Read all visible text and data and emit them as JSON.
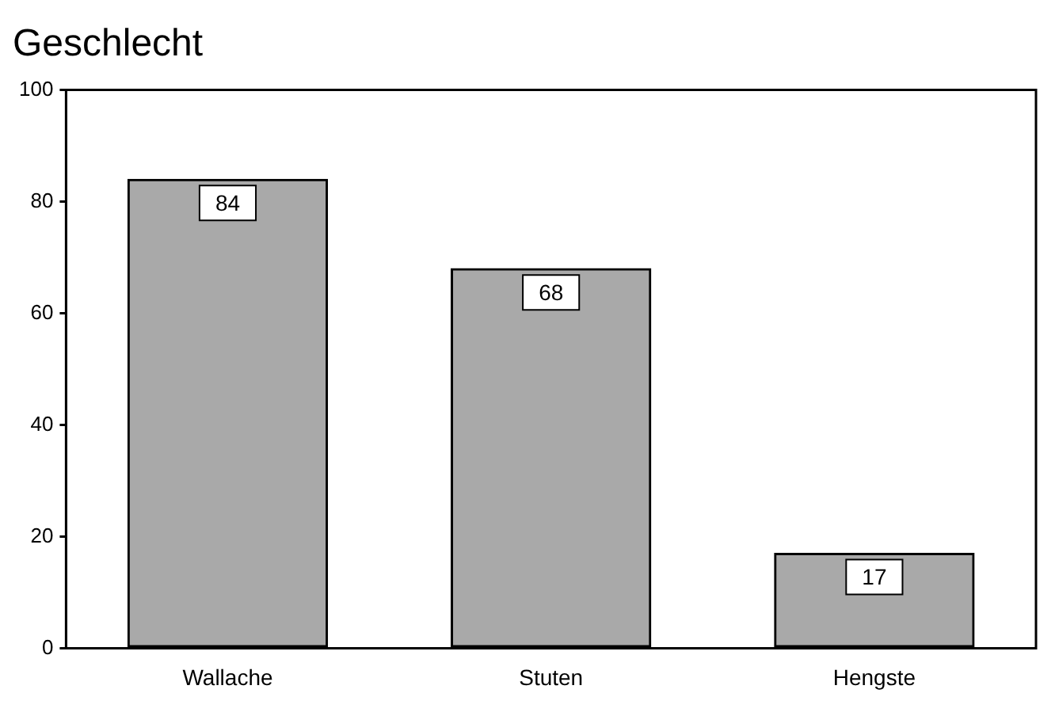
{
  "chart_data": {
    "type": "bar",
    "title": "Geschlecht",
    "categories": [
      "Wallache",
      "Stuten",
      "Hengste"
    ],
    "values": [
      84,
      68,
      17
    ],
    "color": "#a9a9a9",
    "ylim": [
      0,
      100
    ],
    "yticks": [
      0,
      20,
      40,
      60,
      80,
      100
    ],
    "grid": false,
    "data_labels": true
  }
}
